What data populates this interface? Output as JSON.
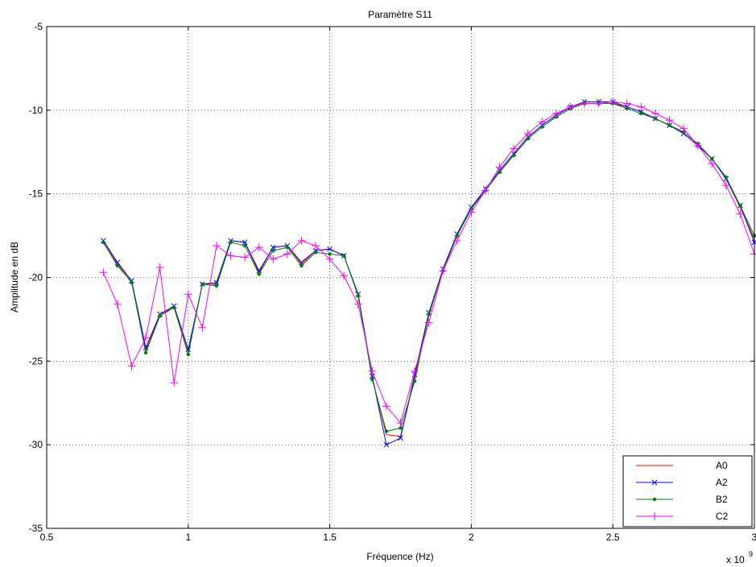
{
  "chart_data": {
    "type": "line",
    "title": "Paramètre S11",
    "xlabel": "Fréquence (Hz)",
    "ylabel": "Amplitude en dB",
    "x_exponent_label": "x 10",
    "x_exponent_power": "9",
    "xlim": [
      0.5,
      3.0
    ],
    "ylim": [
      -35,
      -5
    ],
    "xticks": [
      0.5,
      1,
      1.5,
      2,
      2.5,
      3
    ],
    "xtick_labels": [
      "0.5",
      "1",
      "1.5",
      "2",
      "2.5",
      "3"
    ],
    "yticks": [
      -35,
      -30,
      -25,
      -20,
      -15,
      -10,
      -5
    ],
    "ytick_labels": [
      "-35",
      "-30",
      "-25",
      "-20",
      "-15",
      "-10",
      "-5"
    ],
    "grid": true,
    "legend_position": "bottom-right",
    "x": [
      0.7,
      0.75,
      0.8,
      0.85,
      0.9,
      0.95,
      1.0,
      1.05,
      1.1,
      1.15,
      1.2,
      1.25,
      1.3,
      1.35,
      1.4,
      1.45,
      1.5,
      1.55,
      1.6,
      1.65,
      1.7,
      1.75,
      1.8,
      1.85,
      1.9,
      1.95,
      2.0,
      2.05,
      2.1,
      2.15,
      2.2,
      2.25,
      2.3,
      2.35,
      2.4,
      2.45,
      2.5,
      2.55,
      2.6,
      2.65,
      2.7,
      2.75,
      2.8,
      2.85,
      2.9,
      2.95,
      3.0
    ],
    "series": [
      {
        "name": "A0",
        "color": "#ff0000",
        "marker": "none",
        "values": [
          -17.9,
          -19.2,
          -20.2,
          -24.4,
          -22.2,
          -21.8,
          -24.5,
          -20.4,
          -20.4,
          -17.8,
          -17.9,
          -19.7,
          -18.2,
          -18.1,
          -19.2,
          -18.4,
          -18.3,
          -18.7,
          -21.0,
          -26.0,
          -29.4,
          -29.5,
          -26.0,
          -22.3,
          -19.5,
          -17.4,
          -15.8,
          -14.8,
          -13.7,
          -12.7,
          -11.7,
          -11.0,
          -10.4,
          -9.9,
          -9.6,
          -9.6,
          -9.6,
          -9.8,
          -10.1,
          -10.5,
          -10.9,
          -11.4,
          -12.1,
          -12.9,
          -14.1,
          -15.8,
          -17.7
        ]
      },
      {
        "name": "A2",
        "color": "#0000ff",
        "marker": "x",
        "values": [
          -17.8,
          -19.1,
          -20.2,
          -24.2,
          -22.2,
          -21.7,
          -24.3,
          -20.4,
          -20.3,
          -17.8,
          -17.9,
          -19.6,
          -18.2,
          -18.1,
          -19.1,
          -18.4,
          -18.3,
          -18.7,
          -21.0,
          -25.9,
          -30.0,
          -29.6,
          -25.8,
          -22.1,
          -19.5,
          -17.4,
          -15.8,
          -14.7,
          -13.6,
          -12.6,
          -11.6,
          -10.9,
          -10.3,
          -9.8,
          -9.5,
          -9.5,
          -9.5,
          -9.8,
          -10.1,
          -10.5,
          -10.9,
          -11.4,
          -12.1,
          -12.9,
          -14.1,
          -15.7,
          -17.9
        ]
      },
      {
        "name": "B2",
        "color": "#008000",
        "marker": "dot",
        "values": [
          -17.9,
          -19.3,
          -20.3,
          -24.5,
          -22.3,
          -21.8,
          -24.6,
          -20.4,
          -20.5,
          -17.9,
          -18.1,
          -19.8,
          -18.4,
          -18.2,
          -19.3,
          -18.5,
          -18.6,
          -18.7,
          -21.1,
          -26.1,
          -29.2,
          -29.0,
          -26.2,
          -22.2,
          -19.6,
          -17.5,
          -15.9,
          -14.8,
          -13.7,
          -12.7,
          -11.7,
          -11.0,
          -10.4,
          -9.9,
          -9.6,
          -9.6,
          -9.6,
          -9.9,
          -10.2,
          -10.5,
          -10.9,
          -11.3,
          -12.0,
          -12.9,
          -14.0,
          -15.7,
          -17.5
        ]
      },
      {
        "name": "C2",
        "color": "#ff00ff",
        "marker": "plus",
        "values": [
          -19.7,
          -21.6,
          -25.3,
          -23.6,
          -19.4,
          -26.3,
          -21.0,
          -23.0,
          -18.1,
          -18.7,
          -18.8,
          -18.2,
          -18.9,
          -18.6,
          -17.8,
          -18.1,
          -18.9,
          -19.9,
          -21.6,
          -25.6,
          -27.7,
          -28.7,
          -25.6,
          -22.7,
          -19.6,
          -17.8,
          -16.1,
          -14.8,
          -13.4,
          -12.3,
          -11.4,
          -10.7,
          -10.2,
          -9.8,
          -9.6,
          -9.6,
          -9.5,
          -9.6,
          -9.8,
          -10.2,
          -10.6,
          -11.1,
          -12.1,
          -13.2,
          -14.5,
          -16.2,
          -18.6
        ]
      }
    ]
  }
}
